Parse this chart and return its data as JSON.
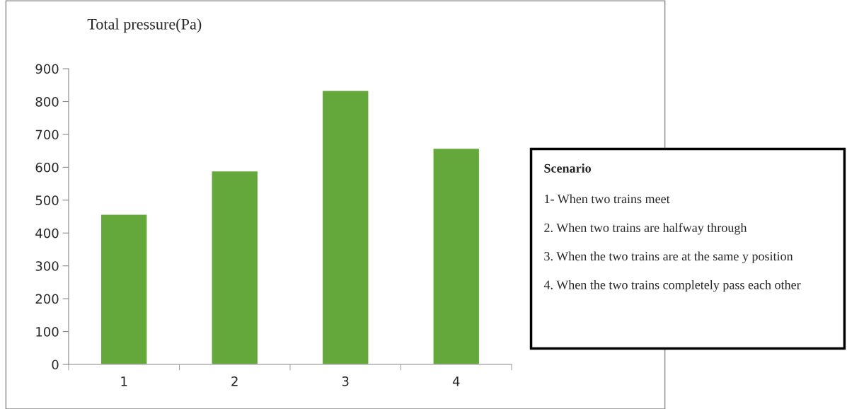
{
  "chart_data": {
    "type": "bar",
    "ylabel": "Total pressure(Pa)",
    "categories": [
      "1",
      "2",
      "3",
      "4"
    ],
    "values": [
      457,
      589,
      834,
      658
    ],
    "color": "#64a83c",
    "ylim": [
      0,
      900
    ],
    "yticks": [
      0,
      100,
      200,
      300,
      400,
      500,
      600,
      700,
      800,
      900
    ],
    "grid": false,
    "legend": false,
    "annotations": [
      "Scenario",
      "1- When two trains meet",
      "2. When two trains are halfway through",
      "3. When the two trains are at the same y position",
      "4. When the two trains completely pass each other"
    ]
  }
}
